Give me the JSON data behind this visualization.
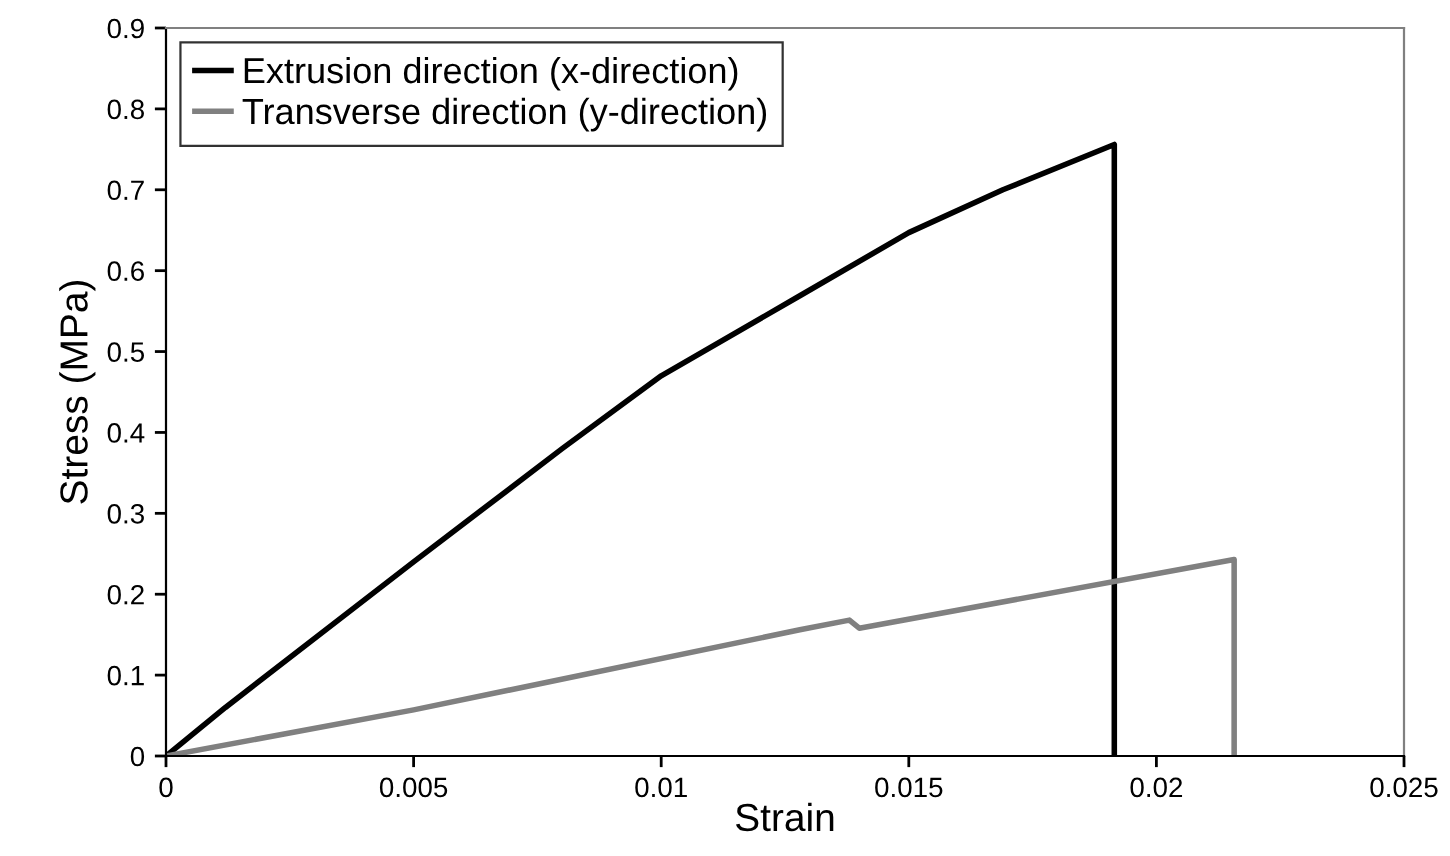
{
  "chart_data": {
    "type": "line",
    "xlabel": "Strain",
    "ylabel": "Stress (MPa)",
    "xlim": [
      0,
      0.025
    ],
    "ylim": [
      0,
      0.9
    ],
    "xticks": [
      0,
      0.005,
      0.01,
      0.015,
      0.02,
      0.025
    ],
    "yticks": [
      0,
      0.1,
      0.2,
      0.3,
      0.4,
      0.5,
      0.6,
      0.7,
      0.8,
      0.9
    ],
    "grid": false,
    "legend": "top left",
    "marker": "none",
    "line_style": "solid",
    "series": [
      {
        "name": "Extrusion direction (x-direction)",
        "color": "#000000",
        "x": [
          0,
          0.0012,
          0.005,
          0.008,
          0.01,
          0.0128,
          0.015,
          0.0169,
          0.01915,
          0.01915
        ],
        "values": [
          0,
          0.06,
          0.24,
          0.38,
          0.47,
          0.569,
          0.647,
          0.7,
          0.756,
          0
        ]
      },
      {
        "name": "Transverse direction (y-direction)",
        "color": "#808080",
        "x": [
          0,
          0.005,
          0.0128,
          0.0138,
          0.014,
          0.02157,
          0.02157
        ],
        "values": [
          0,
          0.057,
          0.156,
          0.168,
          0.158,
          0.243,
          0
        ]
      }
    ]
  }
}
